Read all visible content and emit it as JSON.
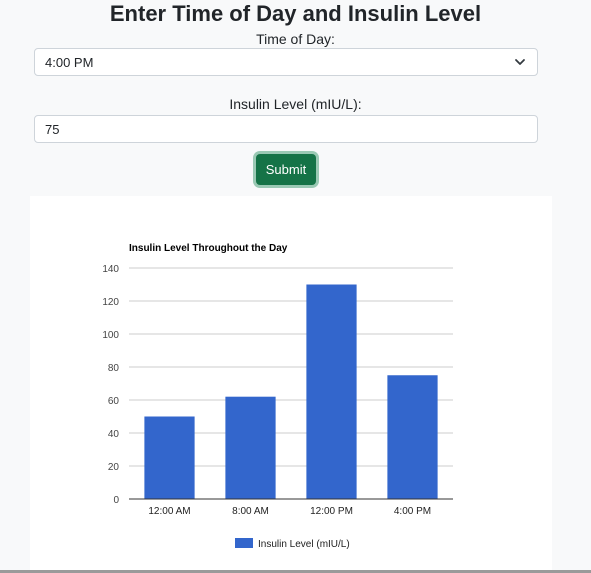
{
  "form": {
    "title": "Enter Time of Day and Insulin Level",
    "time_label": "Time of Day:",
    "time_value": "4:00 PM",
    "insulin_label": "Insulin Level (mIU/L):",
    "insulin_value": "75",
    "submit_label": "Submit"
  },
  "icons": {
    "select_arrow": "chevron-down-icon"
  },
  "colors": {
    "submit": "#157347",
    "bar": "#3366cc"
  },
  "chart_data": {
    "type": "bar",
    "title": "Insulin Level Throughout the Day",
    "xlabel": "",
    "ylabel": "",
    "categories": [
      "12:00 AM",
      "8:00 AM",
      "12:00 PM",
      "4:00 PM"
    ],
    "series": [
      {
        "name": "Insulin Level (mIU/L)",
        "values": [
          50,
          62,
          130,
          75
        ]
      }
    ],
    "yticks": [
      0,
      20,
      40,
      60,
      80,
      100,
      120,
      140
    ],
    "ylim": [
      0,
      140
    ],
    "grid": true,
    "legend": "bottom"
  }
}
